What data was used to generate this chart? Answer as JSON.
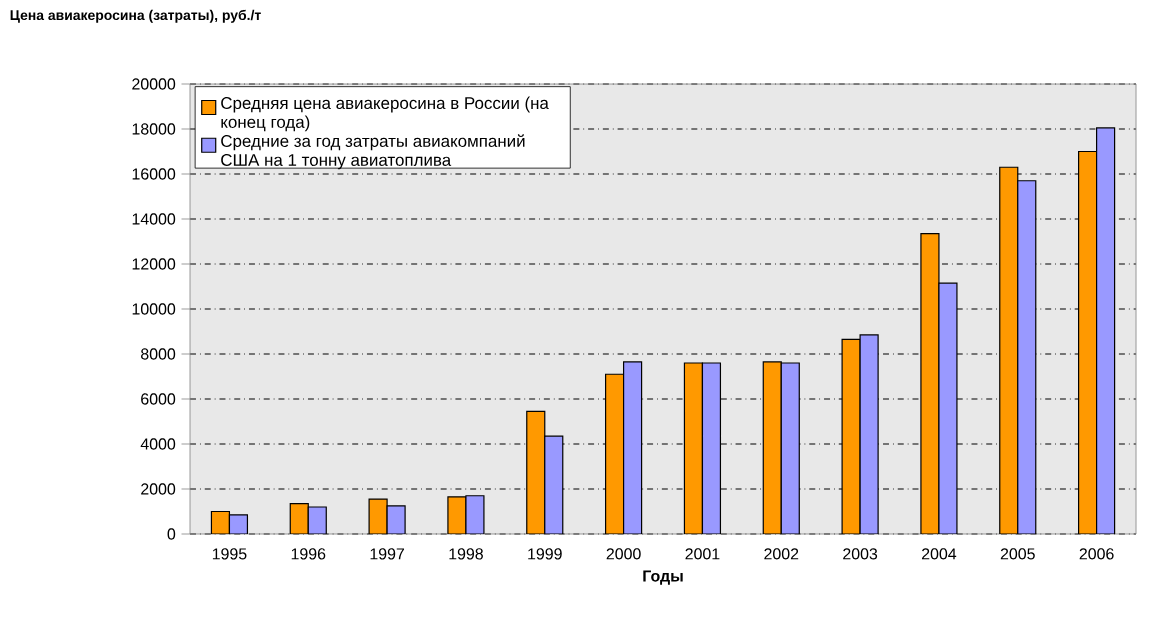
{
  "chart_data": {
    "type": "bar",
    "ylabel": "Цена авиакеросина (затраты), руб./т",
    "xlabel": "Годы",
    "categories": [
      "1995",
      "1996",
      "1997",
      "1998",
      "1999",
      "2000",
      "2001",
      "2002",
      "2003",
      "2004",
      "2005",
      "2006"
    ],
    "series": [
      {
        "name": "Средняя цена авиакеросина в России (на конец года)",
        "color": "#ff9900",
        "values": [
          1000,
          1350,
          1550,
          1650,
          5450,
          7100,
          7600,
          7650,
          8650,
          13350,
          16300,
          17000
        ]
      },
      {
        "name": "Средние за год затраты авиакомпаний США на 1 тонну авиатоплива",
        "color": "#9999ff",
        "values": [
          850,
          1200,
          1250,
          1700,
          4350,
          7650,
          7600,
          7600,
          8850,
          11150,
          15700,
          18050
        ]
      }
    ],
    "ylim": [
      0,
      20000
    ],
    "yticks": [
      0,
      2000,
      4000,
      6000,
      8000,
      10000,
      12000,
      14000,
      16000,
      18000,
      20000
    ],
    "grid": "y",
    "legend": "top left"
  }
}
